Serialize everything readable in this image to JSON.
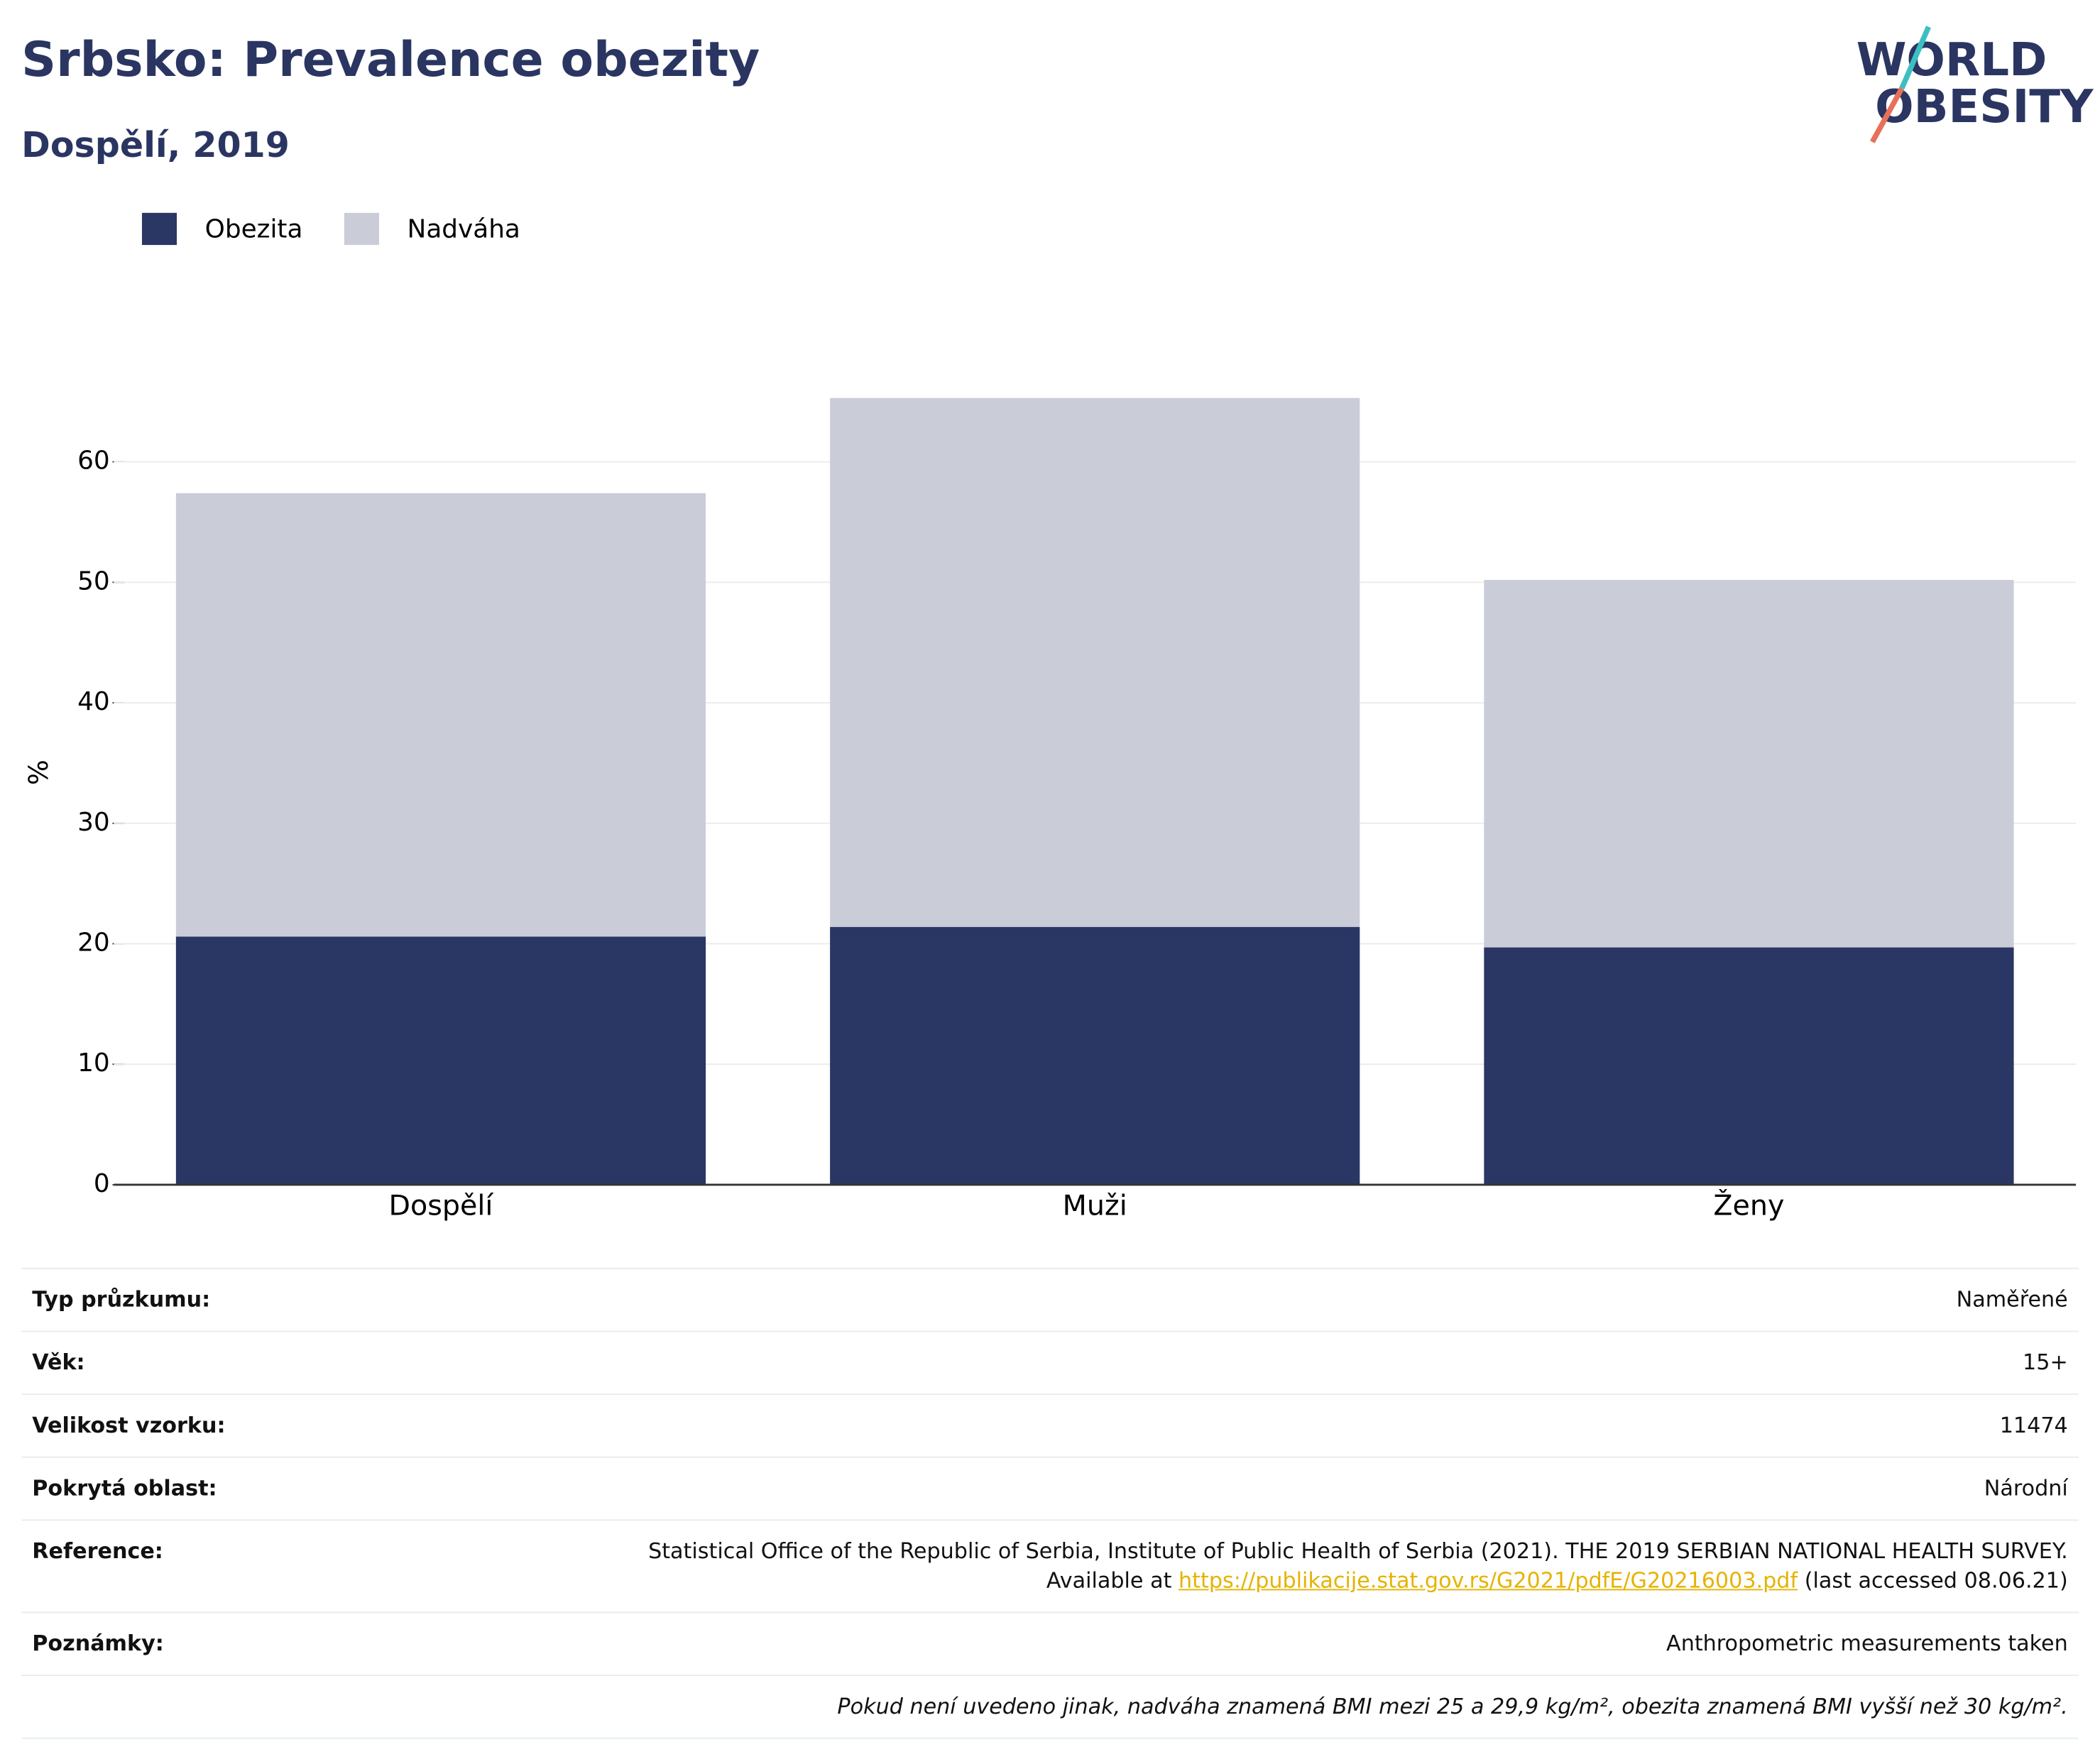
{
  "chart_data": {
    "type": "bar",
    "stacked": true,
    "title": "Srbsko: Prevalence obezity",
    "subtitle": "Dospělí, 2019",
    "y_label": "%",
    "categories": [
      "Dospělí",
      "Muži",
      "Ženy"
    ],
    "series": [
      {
        "name": "Obezita",
        "color": "#2a3663",
        "values": [
          20.6,
          21.4,
          19.7
        ]
      },
      {
        "name": "Nadváha",
        "color": "#cacdd8",
        "values": [
          36.8,
          43.9,
          30.5
        ]
      }
    ],
    "ylim": [
      0,
      68
    ],
    "yticks": [
      0,
      10,
      20,
      30,
      40,
      50,
      60
    ],
    "grid": true,
    "legend": "top-left"
  },
  "logo": [
    "WORLD",
    "OBESITY"
  ],
  "table": {
    "rows": [
      [
        "Typ průzkumu:",
        "Naměřené"
      ],
      [
        "Věk:",
        "15+"
      ],
      [
        "Velikost vzorku:",
        "11474"
      ],
      [
        "Pokrytá oblast:",
        "Národní"
      ]
    ],
    "reference": {
      "label": "Reference:",
      "text": "Statistical Office of the Republic of Serbia, Institute of Public Health of Serbia (2021). THE 2019 SERBIAN NATIONAL HEALTH SURVEY. Available at",
      "link": "https://publikacije.stat.gov.rs/G2021/pdfE/G20216003.pdf",
      "suffix": "(last accessed 08.06.21)"
    },
    "notes": [
      "Poznámky:",
      "Anthropometric measurements taken"
    ],
    "footnote": "Pokud není uvedeno jinak, nadváha znamená BMI mezi 25 a 29,9 kg/m², obezita znamená BMI vyšší než 30 kg/m²."
  }
}
